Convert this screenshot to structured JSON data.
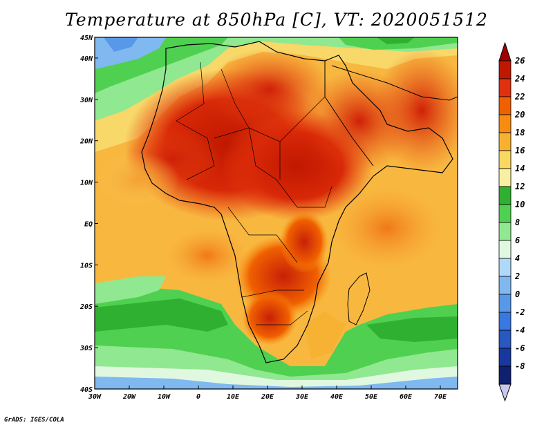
{
  "title": "Temperature at 850hPa [C], VT: 2020051512",
  "footer": "GrADS: IGES/COLA",
  "map": {
    "lon_range": [
      -30,
      75
    ],
    "lat_range": [
      -40,
      45
    ],
    "x_ticks": [
      "30W",
      "20W",
      "10W",
      "0",
      "10E",
      "20E",
      "30E",
      "40E",
      "50E",
      "60E",
      "70E"
    ],
    "y_ticks": [
      "45N",
      "40N",
      "30N",
      "20N",
      "10N",
      "EQ",
      "10S",
      "20S",
      "30S",
      "40S"
    ]
  },
  "colorbar": {
    "labels": [
      "26",
      "24",
      "22",
      "20",
      "18",
      "16",
      "14",
      "12",
      "10",
      "8",
      "6",
      "4",
      "2",
      "0",
      "-2",
      "-4",
      "-6",
      "-8"
    ],
    "colors": [
      "#a00000",
      "#c01800",
      "#e03010",
      "#f06000",
      "#f88c10",
      "#f8b030",
      "#f8d860",
      "#f8f0a0",
      "#30b030",
      "#50d050",
      "#90e890",
      "#e0f8e0",
      "#b0d8f8",
      "#80b8f0",
      "#5898e8",
      "#3878e0",
      "#2858c0",
      "#1838a0",
      "#102070",
      "#c8c8f0"
    ]
  }
}
